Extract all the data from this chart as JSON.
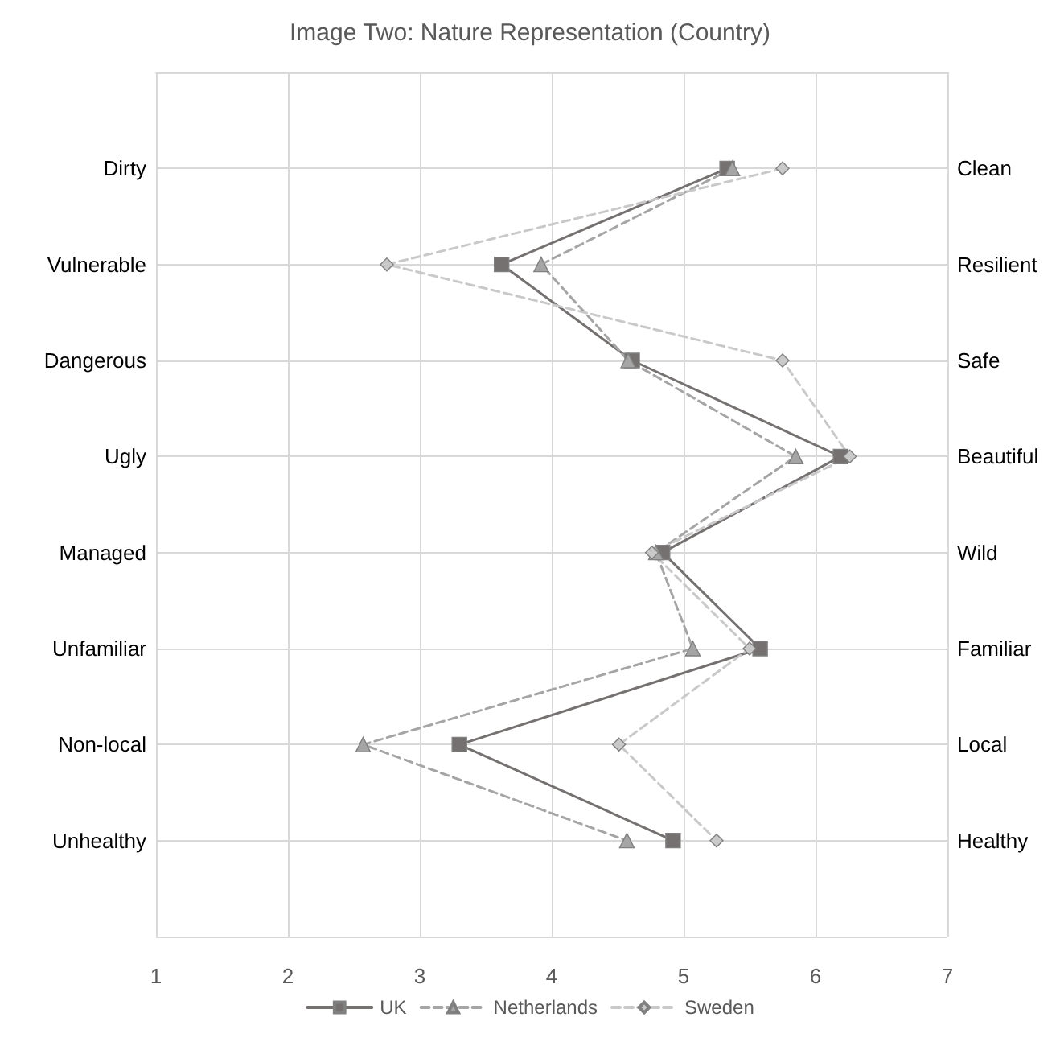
{
  "chart_data": {
    "type": "line",
    "orientation": "horizontal",
    "title": "Image Two: Nature Representation (Country)",
    "categories": [
      "Dirty",
      "Vulnerable",
      "Dangerous",
      "Ugly",
      "Managed",
      "Unfamiliar",
      "Non-local",
      "Unhealthy"
    ],
    "y2_categories": [
      "Clean",
      "Resilient",
      "Safe",
      "Beautiful",
      "Wild",
      "Familiar",
      "Local",
      "Healthy"
    ],
    "xlim": [
      1,
      7
    ],
    "xticks": [
      1,
      2,
      3,
      4,
      5,
      6,
      7
    ],
    "grid": true,
    "legend": "bottom",
    "series": [
      {
        "name": "UK",
        "color": "#767171",
        "marker": "square",
        "line_style": "solid",
        "values": [
          5.33,
          3.62,
          4.61,
          6.19,
          4.84,
          5.58,
          3.3,
          4.92
        ]
      },
      {
        "name": "Netherlands",
        "color": "#a5a5a5",
        "marker": "triangle",
        "line_style": "dashed",
        "values": [
          5.37,
          3.92,
          4.58,
          5.85,
          4.79,
          5.07,
          2.57,
          4.57
        ]
      },
      {
        "name": "Sweden",
        "color": "#c9c9c9",
        "marker": "diamond",
        "line_style": "dashed",
        "values": [
          5.75,
          2.75,
          5.75,
          6.26,
          4.76,
          5.5,
          4.51,
          5.25
        ]
      }
    ]
  }
}
